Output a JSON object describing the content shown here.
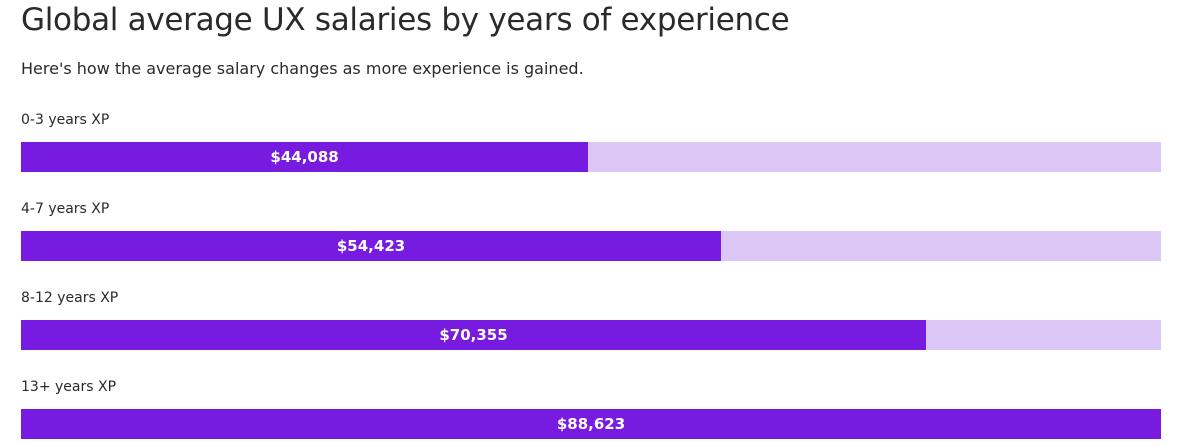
{
  "chart_data": {
    "type": "bar",
    "orientation": "horizontal",
    "title": "Global average UX salaries by years of experience",
    "subtitle": "Here's how the average salary changes as more experience is gained.",
    "categories": [
      "0-3 years XP",
      "4-7 years XP",
      "8-12 years XP",
      "13+ years XP"
    ],
    "values": [
      44088,
      54423,
      70355,
      88623
    ],
    "value_labels": [
      "$44,088",
      "$54,423",
      "$70,355",
      "$88,623"
    ],
    "xlim": [
      0,
      88623
    ],
    "grid": false,
    "colors": {
      "bar": "#781be0",
      "track": "#dcc6f6"
    }
  }
}
